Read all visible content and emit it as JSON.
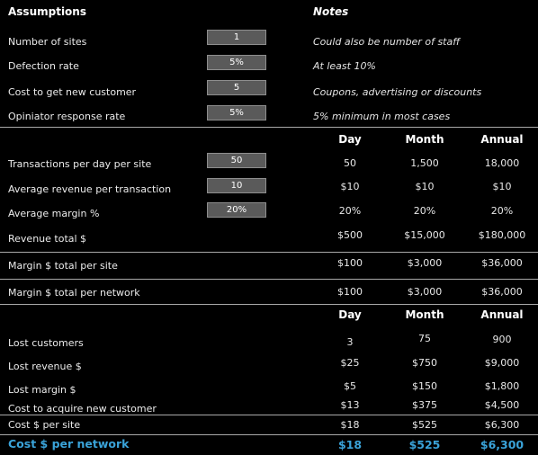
{
  "assumptions": {
    "title": "Assumptions",
    "notes_title": "Notes",
    "rows": [
      {
        "label": "Number of sites",
        "value": "1",
        "note": "Could also be number of staff"
      },
      {
        "label": "Defection rate",
        "value": "5%",
        "note": "At least 10%"
      },
      {
        "label": "Cost to get new customer",
        "value": "5",
        "note": "Coupons, advertising or discounts"
      },
      {
        "label": "Opiniator response rate",
        "value": "5%",
        "note": "5% minimum in most cases"
      }
    ]
  },
  "revenue": {
    "headers": [
      "Day",
      "Month",
      "Annual"
    ],
    "rows": [
      {
        "label": "Transactions per day per site",
        "input": "50",
        "day": "50",
        "month": "1,500",
        "annual": "18,000"
      },
      {
        "label": "Average revenue per transaction",
        "input": "10",
        "day": "$10",
        "month": "$10",
        "annual": "$10"
      },
      {
        "label": "Average margin %",
        "input": "20%",
        "day": "20%",
        "month": "20%",
        "annual": "20%"
      },
      {
        "label": "Revenue total $",
        "day": "$500",
        "month": "$15,000",
        "annual": "$180,000"
      },
      {
        "label": "Margin $ total per site",
        "day": "$100",
        "month": "$3,000",
        "annual": "$36,000"
      },
      {
        "label": "Margin $ total per network",
        "day": "$100",
        "month": "$3,000",
        "annual": "$36,000"
      }
    ]
  },
  "cost": {
    "headers": [
      "Day",
      "Month",
      "Annual"
    ],
    "rows": [
      {
        "label": "Lost customers",
        "day": "3",
        "month": "75",
        "annual": "900"
      },
      {
        "label": "Lost revenue $",
        "day": "$25",
        "month": "$750",
        "annual": "$9,000"
      },
      {
        "label": "Lost margin $",
        "day": "$5",
        "month": "$150",
        "annual": "$1,800"
      },
      {
        "label": "Cost to acquire new customer",
        "day": "$13",
        "month": "$375",
        "annual": "$4,500"
      },
      {
        "label": "Cost $ per site",
        "day": "$18",
        "month": "$525",
        "annual": "$6,300"
      },
      {
        "label": "Cost $ per network",
        "day": "$18",
        "month": "$525",
        "annual": "$6,300"
      }
    ]
  },
  "colors": {
    "accent": "#3aa3d9",
    "input_bg": "#5a5a5a",
    "background": "#000000"
  }
}
